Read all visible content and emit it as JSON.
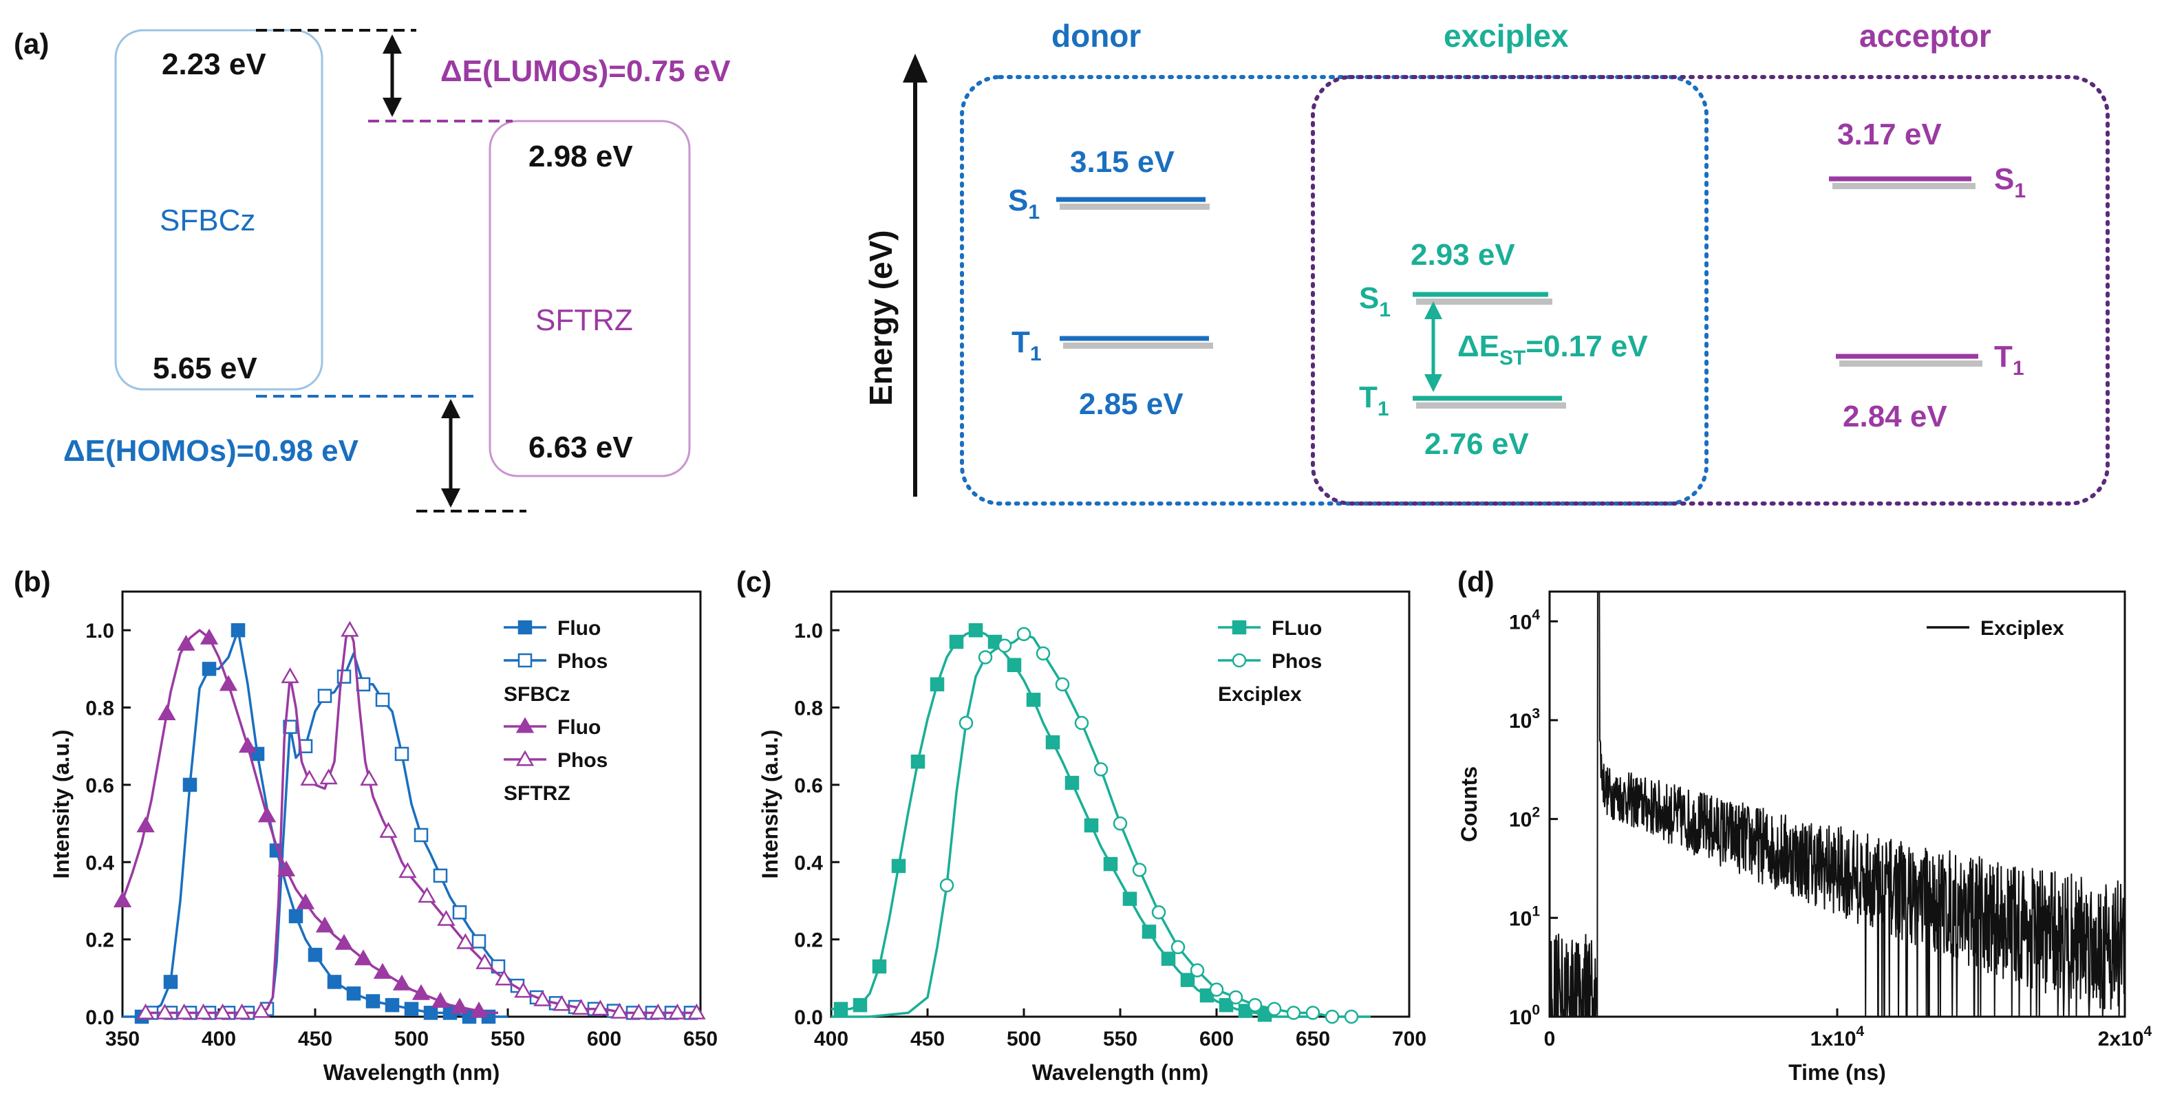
{
  "colors": {
    "blue": "#1a6fbf",
    "purple": "#9b3aa2",
    "teal": "#1aaf96",
    "black": "#111111",
    "grayShadow": "#b5b5b5",
    "donorBox": "#1a6fbf",
    "acceptorBox": "#5a2a7a"
  },
  "panel_a": {
    "label": "(a)",
    "sfbcz": {
      "name": "SFBCz",
      "lumo": "2.23 eV",
      "homo": "5.65 eV"
    },
    "sftrz": {
      "name": "SFTRZ",
      "lumo": "2.98 eV",
      "homo": "6.63 eV"
    },
    "delta_lumo": "ΔE(LUMOs)=0.75 eV",
    "delta_homo": "ΔE(HOMOs)=0.98 eV",
    "energy_axis": "Energy (eV)",
    "donor": {
      "title": "donor",
      "s1_label": "S",
      "s1_sub": "1",
      "t1_label": "T",
      "t1_sub": "1",
      "s1": "3.15 eV",
      "t1": "2.85 eV"
    },
    "exciplex": {
      "title": "exciplex",
      "s1_label": "S",
      "s1_sub": "1",
      "t1_label": "T",
      "t1_sub": "1",
      "s1": "2.93 eV",
      "t1": "2.76 eV",
      "dest_prefix": "ΔE",
      "dest_sub": "ST",
      "dest_value": "=0.17 eV"
    },
    "acceptor": {
      "title": "acceptor",
      "s1_label": "S",
      "s1_sub": "1",
      "t1_label": "T",
      "t1_sub": "1",
      "s1": "3.17 eV",
      "t1": "2.84 eV"
    }
  },
  "chart_data": [
    {
      "panel": "(b)",
      "type": "line",
      "xlabel": "Wavelength (nm)",
      "ylabel": "Intensity (a.u.)",
      "xlim": [
        350,
        650
      ],
      "ylim": [
        0,
        1.1
      ],
      "xticks": [
        350,
        400,
        450,
        500,
        550,
        600,
        650
      ],
      "yticks": [
        0.0,
        0.2,
        0.4,
        0.6,
        0.8,
        1.0
      ],
      "legend_groups": [
        "SFBCz",
        "SFTRZ"
      ],
      "legend": "top-right",
      "series": [
        {
          "name": "Fluo",
          "group": "SFBCz",
          "color": "#1a6fbf",
          "marker": "square-filled",
          "x": [
            350,
            360,
            370,
            375,
            380,
            385,
            390,
            395,
            400,
            405,
            410,
            415,
            420,
            425,
            430,
            435,
            440,
            445,
            450,
            460,
            470,
            480,
            490,
            500,
            510,
            520,
            530,
            540,
            550
          ],
          "y": [
            0,
            0,
            0.03,
            0.09,
            0.3,
            0.6,
            0.85,
            0.9,
            0.9,
            0.93,
            1.0,
            0.86,
            0.68,
            0.54,
            0.43,
            0.34,
            0.26,
            0.2,
            0.16,
            0.09,
            0.06,
            0.04,
            0.03,
            0.02,
            0.01,
            0.01,
            0,
            0,
            0
          ],
          "markers_x": [
            360,
            375,
            385,
            395,
            410,
            420,
            430,
            440,
            450,
            460,
            470,
            480,
            490,
            500,
            510,
            520,
            530,
            540
          ]
        },
        {
          "name": "Phos",
          "group": "SFBCz",
          "color": "#1a6fbf",
          "marker": "square-open",
          "x": [
            360,
            370,
            380,
            390,
            400,
            410,
            420,
            425,
            428,
            430,
            433,
            437,
            440,
            445,
            450,
            455,
            460,
            465,
            470,
            475,
            480,
            485,
            490,
            495,
            500,
            505,
            510,
            520,
            530,
            540,
            550,
            560,
            570,
            580,
            590,
            600,
            610,
            620,
            630,
            640,
            650
          ],
          "y": [
            0.01,
            0.01,
            0.01,
            0.01,
            0.01,
            0.01,
            0.01,
            0.02,
            0.05,
            0.14,
            0.42,
            0.75,
            0.67,
            0.7,
            0.79,
            0.83,
            0.84,
            0.88,
            0.94,
            0.86,
            0.86,
            0.82,
            0.79,
            0.68,
            0.55,
            0.47,
            0.42,
            0.31,
            0.23,
            0.16,
            0.1,
            0.06,
            0.04,
            0.03,
            0.02,
            0.02,
            0.01,
            0.01,
            0.01,
            0.01,
            0.01
          ],
          "markers_x": [
            365,
            375,
            385,
            395,
            405,
            415,
            425,
            437,
            445,
            455,
            465,
            475,
            485,
            495,
            505,
            515,
            525,
            535,
            545,
            555,
            565,
            575,
            585,
            595,
            605,
            615,
            625,
            635,
            645
          ]
        },
        {
          "name": "Fluo",
          "group": "SFTRZ",
          "color": "#9b3aa2",
          "marker": "triangle-filled",
          "x": [
            350,
            355,
            360,
            365,
            370,
            375,
            380,
            385,
            390,
            395,
            400,
            405,
            410,
            415,
            420,
            425,
            430,
            435,
            440,
            450,
            460,
            470,
            480,
            490,
            500,
            510,
            520,
            530,
            540,
            545
          ],
          "y": [
            0.3,
            0.37,
            0.45,
            0.56,
            0.7,
            0.84,
            0.94,
            0.98,
            1.0,
            0.98,
            0.93,
            0.86,
            0.78,
            0.7,
            0.61,
            0.52,
            0.44,
            0.38,
            0.33,
            0.26,
            0.21,
            0.17,
            0.13,
            0.1,
            0.07,
            0.05,
            0.03,
            0.02,
            0.01,
            0.01
          ],
          "markers_x": [
            350,
            362,
            373,
            383,
            395,
            405,
            415,
            425,
            435,
            445,
            455,
            465,
            475,
            485,
            495,
            505,
            515,
            525,
            535
          ]
        },
        {
          "name": "Phos",
          "group": "SFTRZ",
          "color": "#9b3aa2",
          "marker": "triangle-open",
          "x": [
            360,
            370,
            380,
            390,
            400,
            410,
            420,
            425,
            428,
            431,
            434,
            437,
            440,
            443,
            446,
            450,
            455,
            460,
            463,
            466,
            468,
            470,
            473,
            476,
            480,
            485,
            490,
            495,
            500,
            505,
            510,
            520,
            530,
            540,
            550,
            560,
            570,
            580,
            590,
            600,
            610,
            620,
            630,
            640,
            650
          ],
          "y": [
            0.01,
            0.01,
            0.01,
            0.01,
            0.01,
            0.01,
            0.01,
            0.02,
            0.05,
            0.3,
            0.72,
            0.88,
            0.8,
            0.66,
            0.62,
            0.6,
            0.59,
            0.66,
            0.85,
            0.98,
            1.0,
            0.97,
            0.8,
            0.66,
            0.57,
            0.51,
            0.46,
            0.4,
            0.36,
            0.33,
            0.3,
            0.24,
            0.18,
            0.13,
            0.09,
            0.06,
            0.04,
            0.03,
            0.02,
            0.02,
            0.01,
            0.01,
            0.01,
            0.01,
            0.01
          ],
          "markers_x": [
            362,
            372,
            382,
            392,
            402,
            412,
            422,
            437,
            447,
            457,
            468,
            478,
            488,
            498,
            508,
            518,
            528,
            538,
            548,
            558,
            568,
            578,
            588,
            598,
            608,
            618,
            628,
            638,
            648
          ]
        }
      ]
    },
    {
      "panel": "(c)",
      "type": "line",
      "xlabel": "Wavelength (nm)",
      "ylabel": "Intensity (a.u.)",
      "xlim": [
        400,
        700
      ],
      "ylim": [
        0,
        1.1
      ],
      "xticks": [
        400,
        450,
        500,
        550,
        600,
        650,
        700
      ],
      "yticks": [
        0.0,
        0.2,
        0.4,
        0.6,
        0.8,
        1.0
      ],
      "legend_groups": [
        "Exciplex"
      ],
      "legend": "top-right",
      "series": [
        {
          "name": "FLuo",
          "group": "Exciplex",
          "color": "#1aaf96",
          "marker": "square-filled",
          "x": [
            400,
            410,
            415,
            420,
            425,
            430,
            435,
            440,
            445,
            450,
            455,
            460,
            465,
            470,
            475,
            480,
            485,
            490,
            495,
            500,
            505,
            510,
            520,
            530,
            540,
            550,
            560,
            570,
            580,
            590,
            600,
            610,
            620,
            630,
            640,
            650
          ],
          "y": [
            0.02,
            0.02,
            0.03,
            0.06,
            0.13,
            0.25,
            0.39,
            0.53,
            0.66,
            0.77,
            0.86,
            0.93,
            0.97,
            0.99,
            1.0,
            0.99,
            0.97,
            0.94,
            0.91,
            0.87,
            0.82,
            0.76,
            0.66,
            0.55,
            0.44,
            0.35,
            0.26,
            0.18,
            0.12,
            0.07,
            0.04,
            0.02,
            0.01,
            0,
            0,
            0
          ],
          "markers_x": [
            405,
            415,
            425,
            435,
            445,
            455,
            465,
            475,
            485,
            495,
            505,
            515,
            525,
            535,
            545,
            555,
            565,
            575,
            585,
            595,
            605,
            615,
            625
          ]
        },
        {
          "name": "Phos",
          "group": "Exciplex",
          "color": "#1aaf96",
          "marker": "circle-open",
          "x": [
            400,
            420,
            440,
            450,
            455,
            460,
            465,
            470,
            475,
            480,
            485,
            490,
            495,
            500,
            505,
            510,
            520,
            530,
            540,
            550,
            560,
            570,
            580,
            590,
            600,
            610,
            620,
            630,
            640,
            650,
            660,
            670,
            680
          ],
          "y": [
            0,
            0,
            0.01,
            0.05,
            0.18,
            0.34,
            0.58,
            0.76,
            0.88,
            0.93,
            0.95,
            0.96,
            0.97,
            0.99,
            0.98,
            0.94,
            0.86,
            0.76,
            0.64,
            0.5,
            0.38,
            0.27,
            0.18,
            0.12,
            0.07,
            0.05,
            0.03,
            0.02,
            0.01,
            0.01,
            0,
            0,
            0
          ],
          "markers_x": [
            460,
            470,
            480,
            490,
            500,
            510,
            520,
            530,
            540,
            550,
            560,
            570,
            580,
            590,
            600,
            610,
            620,
            630,
            640,
            650,
            660,
            670
          ]
        }
      ]
    },
    {
      "panel": "(d)",
      "type": "line",
      "scale_y": "log",
      "xlabel": "Time (ns)",
      "ylabel": "Counts",
      "xlim": [
        0,
        20000
      ],
      "ylim": [
        1,
        20000
      ],
      "xtick_values": [
        0,
        10000,
        20000
      ],
      "xtick_labels": [
        {
          "base": "0",
          "exp": ""
        },
        {
          "base": "1x10",
          "exp": "4"
        },
        {
          "base": "2x10",
          "exp": "4"
        }
      ],
      "ytick_values": [
        1,
        10,
        100,
        1000,
        10000
      ],
      "ytick_labels": [
        {
          "base": "10",
          "exp": "0"
        },
        {
          "base": "10",
          "exp": "1"
        },
        {
          "base": "10",
          "exp": "2"
        },
        {
          "base": "10",
          "exp": "3"
        },
        {
          "base": "10",
          "exp": "4"
        }
      ],
      "legend": "top-right",
      "series": [
        {
          "name": "Exciplex",
          "color": "#111111",
          "noise_floor": 3,
          "rise_time": 1700,
          "peak": 20000,
          "tail_start_value": 200,
          "tail_end_value": 2.5,
          "decay_tau": 4200
        }
      ]
    }
  ]
}
